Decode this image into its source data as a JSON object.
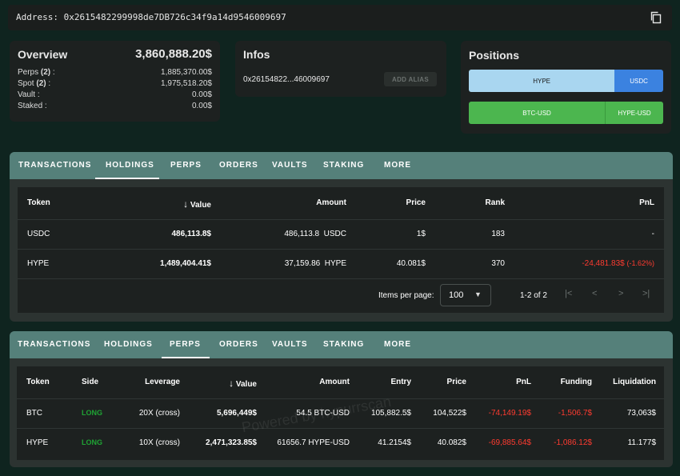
{
  "address_bar": {
    "label": "Address:",
    "value": "0x2615482299998de7DB726c34f9a14d9546009697"
  },
  "overview": {
    "title": "Overview",
    "total": "3,860,888.20$",
    "rows": [
      {
        "label": "Perps",
        "count": "(2)",
        "suffix": ":",
        "value": "1,885,370.00$"
      },
      {
        "label": "Spot",
        "count": "(2)",
        "suffix": ":",
        "value": "1,975,518.20$"
      },
      {
        "label": "Vault",
        "count": "",
        "suffix": ":",
        "value": "0.00$"
      },
      {
        "label": "Staked",
        "count": "",
        "suffix": ":",
        "value": "0.00$"
      }
    ]
  },
  "infos": {
    "title": "Infos",
    "address": "0x26154822...46009697",
    "alias_button": "ADD ALIAS"
  },
  "positions": {
    "title": "Positions",
    "spot_bar": [
      {
        "label": "HYPE",
        "share": 0.75,
        "color": "#a9d6f0"
      },
      {
        "label": "USDC",
        "share": 0.25,
        "color": "#3b82e0"
      }
    ],
    "perp_bar": [
      {
        "label": "BTC-USD",
        "share": 0.7,
        "color": "#4cb64f"
      },
      {
        "label": "HYPE-USD",
        "share": 0.3,
        "color": "#4cb64f"
      }
    ]
  },
  "tabs": [
    "TRANSACTIONS",
    "HOLDINGS",
    "PERPS",
    "ORDERS",
    "VAULTS",
    "STAKING",
    "MORE"
  ],
  "holdings": {
    "active_tab": "HOLDINGS",
    "headers": {
      "token": "Token",
      "sort_arrow": "↓",
      "value": "Value",
      "amount": "Amount",
      "price": "Price",
      "rank": "Rank",
      "pnl": "PnL"
    },
    "rows": [
      {
        "token": "USDC",
        "value": "486,113.8$",
        "amount": "486,113.8",
        "amount_unit": "USDC",
        "price": "1$",
        "rank": "183",
        "pnl": "-",
        "pnl_pct": ""
      },
      {
        "token": "HYPE",
        "value": "1,489,404.41$",
        "amount": "37,159.86",
        "amount_unit": "HYPE",
        "price": "40.081$",
        "rank": "370",
        "pnl": "-24,481.83$",
        "pnl_pct": "(-1.62%)"
      }
    ],
    "pagination": {
      "items_per_page_label": "Items per page:",
      "items_per_page": "100",
      "range": "1-2 of 2"
    }
  },
  "perps": {
    "active_tab": "PERPS",
    "headers": {
      "token": "Token",
      "side": "Side",
      "leverage": "Leverage",
      "sort_arrow": "↓",
      "value": "Value",
      "amount": "Amount",
      "entry": "Entry",
      "price": "Price",
      "pnl": "PnL",
      "funding": "Funding",
      "liquidation": "Liquidation"
    },
    "rows": [
      {
        "token": "BTC",
        "side": "LONG",
        "leverage": "20X (cross)",
        "value": "5,696,449$",
        "amount": "54.5 BTC-USD",
        "entry": "105,882.5$",
        "price": "104,522$",
        "pnl": "-74,149.19$",
        "funding": "-1,506.7$",
        "liquidation": "73,063$"
      },
      {
        "token": "HYPE",
        "side": "LONG",
        "leverage": "10X (cross)",
        "value": "2,471,323.85$",
        "amount": "61656.7 HYPE-USD",
        "entry": "41.2154$",
        "price": "40.082$",
        "pnl": "-69,885.64$",
        "funding": "-1,086.12$",
        "liquidation": "11.177$"
      }
    ],
    "watermark": "Powered by hypurrscan"
  }
}
